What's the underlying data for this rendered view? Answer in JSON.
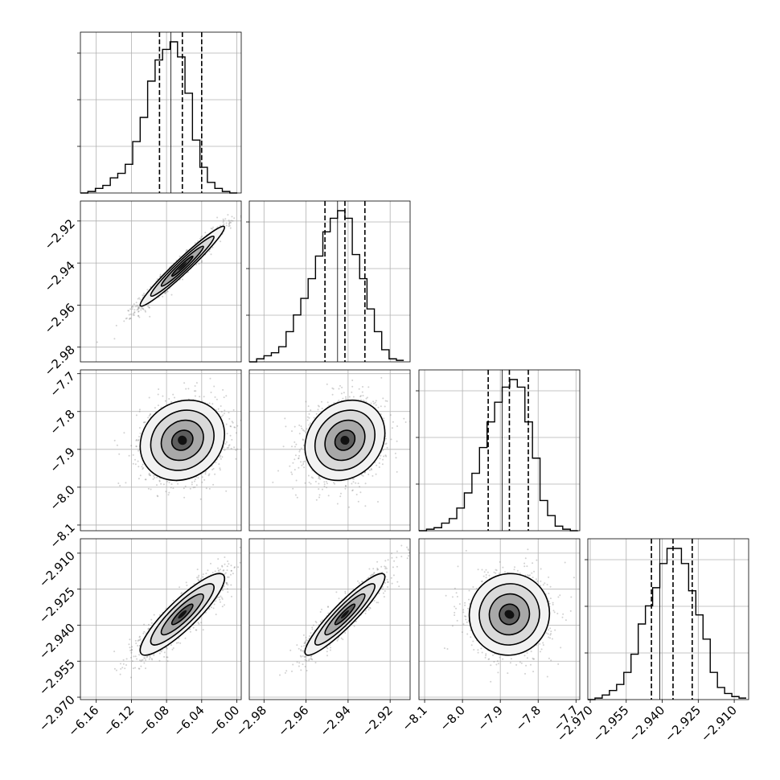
{
  "chart_data": {
    "type": "corner",
    "grid": true,
    "parameters": [
      {
        "ticks": [
          -6.16,
          -6.12,
          -6.08,
          -6.04,
          -6.0
        ],
        "tick_labels": [
          "−6.16",
          "−6.12",
          "−6.08",
          "−6.04",
          "−6.00"
        ],
        "range": [
          -6.178,
          -5.995
        ],
        "quantiles": [
          -6.088,
          -6.062,
          -6.04
        ],
        "truth": -6.075,
        "hist_bins": [
          -6.178,
          -6.1695,
          -6.161,
          -6.1525,
          -6.144,
          -6.1355,
          -6.127,
          -6.1185,
          -6.11,
          -6.1015,
          -6.093,
          -6.0845,
          -6.076,
          -6.0675,
          -6.059,
          -6.0505,
          -6.042,
          -6.0335,
          -6.025,
          -6.0165,
          -6.008,
          -5.9995
        ],
        "hist_density": [
          0.0,
          0.01,
          0.03,
          0.05,
          0.1,
          0.13,
          0.19,
          0.34,
          0.5,
          0.74,
          0.88,
          0.95,
          1.0,
          0.9,
          0.66,
          0.35,
          0.17,
          0.07,
          0.03,
          0.01,
          0.0
        ]
      },
      {
        "ticks": [
          -2.98,
          -2.96,
          -2.94,
          -2.92
        ],
        "tick_labels": [
          "−2.98",
          "−2.96",
          "−2.94",
          "−2.92"
        ],
        "range": [
          -2.987,
          -2.9105
        ],
        "quantiles": [
          -2.951,
          -2.9415,
          -2.932
        ],
        "truth": -2.945,
        "hist_bins": [
          -2.987,
          -2.9835,
          -2.98,
          -2.9765,
          -2.973,
          -2.9695,
          -2.966,
          -2.9625,
          -2.959,
          -2.9555,
          -2.952,
          -2.9485,
          -2.945,
          -2.9415,
          -2.938,
          -2.9345,
          -2.931,
          -2.9275,
          -2.924,
          -2.9205,
          -2.917,
          -2.9135
        ],
        "hist_density": [
          0.0,
          0.02,
          0.04,
          0.06,
          0.1,
          0.2,
          0.31,
          0.42,
          0.55,
          0.7,
          0.86,
          0.95,
          1.0,
          0.95,
          0.71,
          0.55,
          0.35,
          0.2,
          0.08,
          0.02,
          0.01
        ]
      },
      {
        "ticks": [
          -8.1,
          -8.0,
          -7.9,
          -7.8,
          -7.7
        ],
        "tick_labels": [
          "−8.1",
          "−8.0",
          "−7.9",
          "−7.8",
          "−7.7"
        ],
        "range": [
          -8.115,
          -7.69
        ],
        "quantiles": [
          -7.932,
          -7.876,
          -7.826
        ],
        "truth": -7.895,
        "hist_bins": [
          -8.115,
          -8.095,
          -8.075,
          -8.055,
          -8.035,
          -8.015,
          -7.995,
          -7.975,
          -7.955,
          -7.935,
          -7.915,
          -7.895,
          -7.875,
          -7.855,
          -7.835,
          -7.815,
          -7.795,
          -7.775,
          -7.755,
          -7.735,
          -7.715,
          -7.695
        ],
        "hist_density": [
          0.0,
          0.01,
          0.02,
          0.05,
          0.08,
          0.15,
          0.25,
          0.38,
          0.55,
          0.72,
          0.85,
          0.95,
          1.0,
          0.95,
          0.72,
          0.48,
          0.2,
          0.1,
          0.03,
          0.01,
          0.0
        ]
      },
      {
        "ticks": [
          -2.97,
          -2.955,
          -2.94,
          -2.925,
          -2.91
        ],
        "tick_labels": [
          "−2.970",
          "−2.955",
          "−2.940",
          "−2.925",
          "−2.910"
        ],
        "range": [
          -2.971,
          -2.904
        ],
        "quantiles": [
          -2.9445,
          -2.9355,
          -2.9275
        ],
        "truth": -2.941,
        "hist_bins": [
          -2.971,
          -2.968,
          -2.965,
          -2.962,
          -2.959,
          -2.956,
          -2.953,
          -2.95,
          -2.947,
          -2.944,
          -2.941,
          -2.938,
          -2.935,
          -2.932,
          -2.929,
          -2.926,
          -2.923,
          -2.92,
          -2.917,
          -2.914,
          -2.911,
          -2.908,
          -2.905
        ],
        "hist_density": [
          0.0,
          0.01,
          0.03,
          0.06,
          0.1,
          0.18,
          0.3,
          0.5,
          0.62,
          0.74,
          0.9,
          1.0,
          1.0,
          0.9,
          0.72,
          0.56,
          0.4,
          0.18,
          0.08,
          0.04,
          0.02,
          0.01
        ]
      }
    ],
    "pairs": [
      {
        "x": 0,
        "y": 1,
        "correlation": 0.97
      },
      {
        "x": 0,
        "y": 2,
        "correlation": 0.15
      },
      {
        "x": 1,
        "y": 2,
        "correlation": 0.18
      },
      {
        "x": 0,
        "y": 3,
        "correlation": 0.88
      },
      {
        "x": 1,
        "y": 3,
        "correlation": 0.92
      },
      {
        "x": 2,
        "y": 3,
        "correlation": 0.03
      }
    ],
    "contour_levels_sigma": [
      0.5,
      1.0,
      1.5,
      2.0
    ],
    "colors": {
      "points": "#7a7a7a",
      "contour": "#000000",
      "grid": "#b0b0b0",
      "frame": "#000000"
    }
  }
}
